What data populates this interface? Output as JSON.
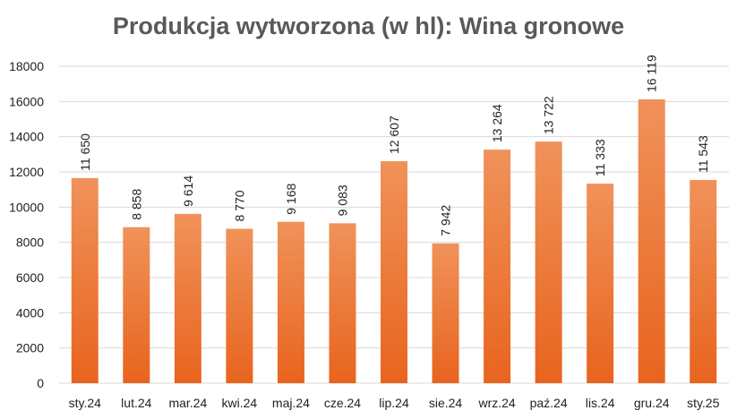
{
  "chart_data": {
    "type": "bar",
    "title": "Produkcja wytworzona (w hl): Wina gronowe",
    "categories": [
      "sty.24",
      "lut.24",
      "mar.24",
      "kwi.24",
      "maj.24",
      "cze.24",
      "lip.24",
      "sie.24",
      "wrz.24",
      "paź.24",
      "lis.24",
      "gru.24",
      "sty.25"
    ],
    "values": [
      11650,
      8858,
      9614,
      8770,
      9168,
      9083,
      12607,
      7942,
      13264,
      13722,
      11333,
      16119,
      11543
    ],
    "value_labels": [
      "11 650",
      "8 858",
      "9 614",
      "8 770",
      "9 168",
      "9 083",
      "12 607",
      "7 942",
      "13 264",
      "13 722",
      "11 333",
      "16 119",
      "11 543"
    ],
    "y_ticks": [
      "0",
      "2000",
      "4000",
      "6000",
      "8000",
      "10000",
      "12000",
      "14000",
      "16000",
      "18000"
    ],
    "ylim": [
      0,
      18000
    ],
    "grid": true,
    "legend": "none",
    "bar_color_top": "#f0925a",
    "bar_color_bottom": "#e8641e",
    "grid_color": "#d9d9d9"
  }
}
